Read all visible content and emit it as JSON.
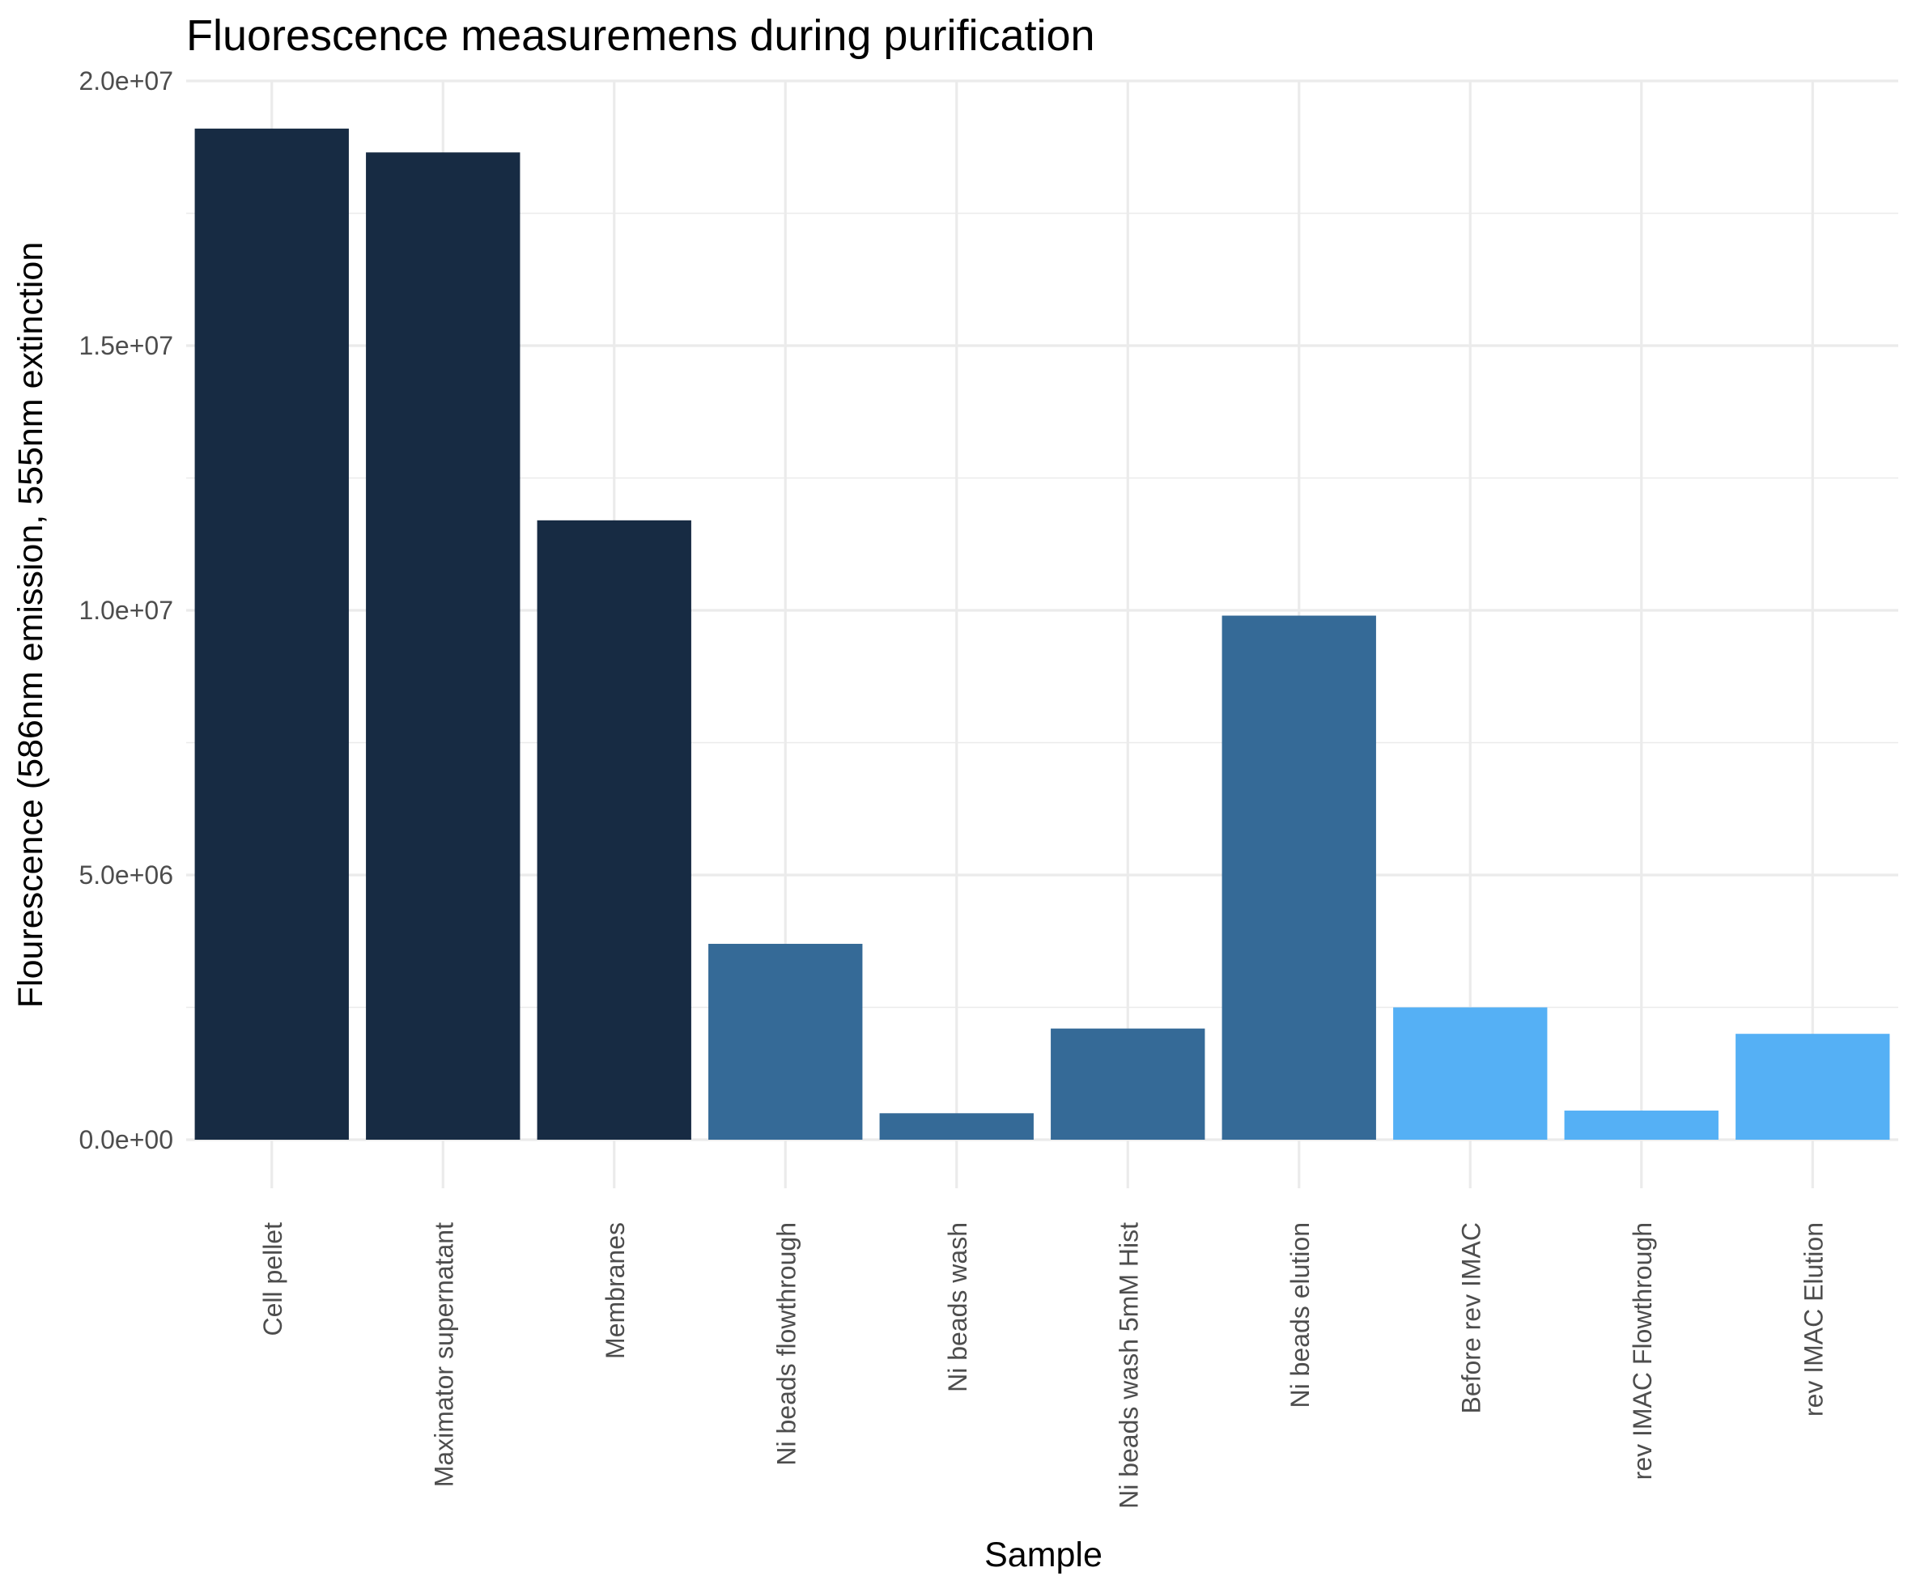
{
  "chart_data": {
    "type": "bar",
    "title": "Fluorescence measuremens during purification",
    "xlabel": "Sample",
    "ylabel": "Flourescence (586nm emission, 555nm extinction",
    "categories": [
      "Cell pellet",
      "Maximator supernatant",
      "Membranes",
      "Ni beads flowthrough",
      "Ni beads wash",
      "Ni beads wash 5mM Hist",
      "Ni beads elution",
      "Before rev IMAC",
      "rev IMAC Flowthrough",
      "rev IMAC Elution"
    ],
    "values": [
      19100000,
      18650000,
      11700000,
      3700000,
      500000,
      2100000,
      9900000,
      2500000,
      550000,
      2000000
    ],
    "bar_colors": [
      "#172b43",
      "#172b43",
      "#172b43",
      "#356a97",
      "#356a97",
      "#356a97",
      "#356a97",
      "#55b0f5",
      "#55b0f5",
      "#55b0f5"
    ],
    "ylim": [
      0,
      20000000
    ],
    "yticks": [
      0,
      5000000,
      10000000,
      15000000,
      20000000
    ],
    "ytick_labels": [
      "0.0e+00",
      "5.0e+06",
      "1.0e+07",
      "1.5e+07",
      "2.0e+07"
    ],
    "grid": true,
    "legend": "none"
  }
}
